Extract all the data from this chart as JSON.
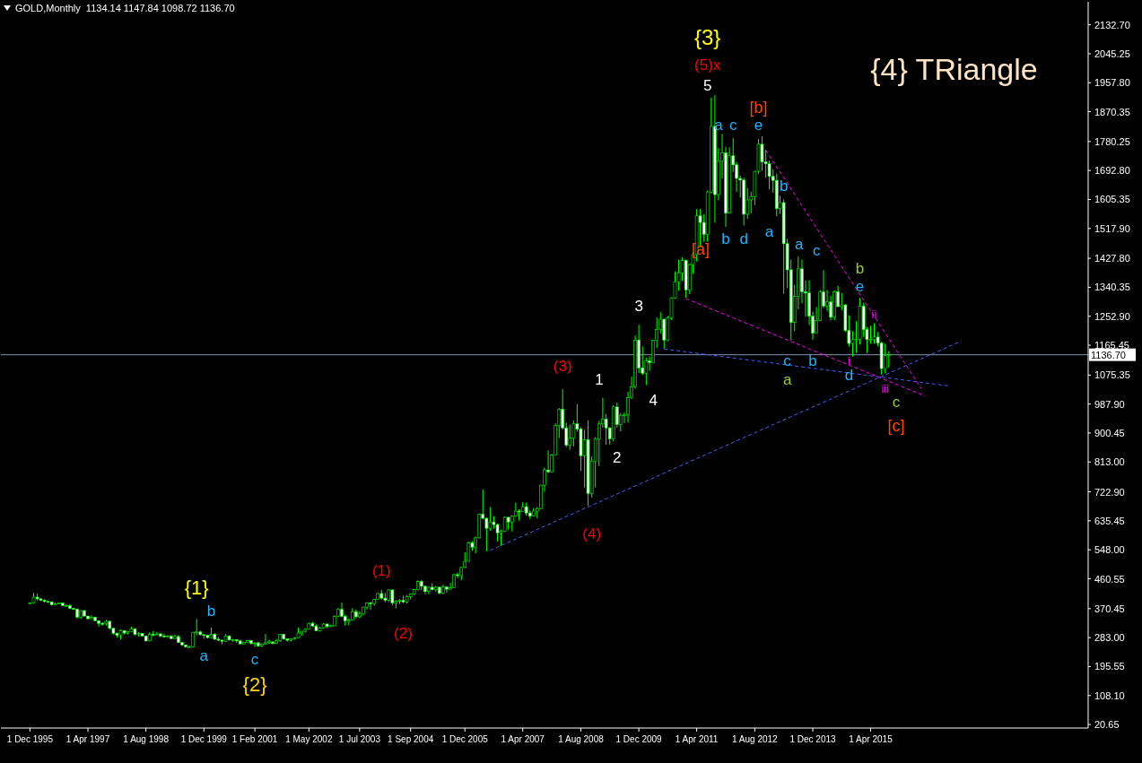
{
  "chart_data": {
    "type": "candlestick",
    "title": "GOLD,Monthly  1134.14 1147.84 1098.72 1136.70",
    "color": "#00ff00",
    "x": [
      "1995-12",
      "1996-01",
      "1996-02",
      "1996-03",
      "1996-04",
      "1996-05",
      "1996-06",
      "1996-07",
      "1996-08",
      "1996-09",
      "1996-10",
      "1996-11",
      "1996-12",
      "1997-01",
      "1997-02",
      "1997-03",
      "1997-04",
      "1997-05",
      "1997-06",
      "1997-07",
      "1997-08",
      "1997-09",
      "1997-10",
      "1997-11",
      "1997-12",
      "1998-01",
      "1998-02",
      "1998-03",
      "1998-04",
      "1998-05",
      "1998-06",
      "1998-07",
      "1998-08",
      "1998-09",
      "1998-10",
      "1998-11",
      "1998-12",
      "1999-01",
      "1999-02",
      "1999-03",
      "1999-04",
      "1999-05",
      "1999-06",
      "1999-07",
      "1999-08",
      "1999-09",
      "1999-10",
      "1999-11",
      "1999-12",
      "2000-01",
      "2000-02",
      "2000-03",
      "2000-04",
      "2000-05",
      "2000-06",
      "2000-07",
      "2000-08",
      "2000-09",
      "2000-10",
      "2000-11",
      "2000-12",
      "2001-01",
      "2001-02",
      "2001-03",
      "2001-04",
      "2001-05",
      "2001-06",
      "2001-07",
      "2001-08",
      "2001-09",
      "2001-10",
      "2001-11",
      "2001-12",
      "2002-01",
      "2002-02",
      "2002-03",
      "2002-04",
      "2002-05",
      "2002-06",
      "2002-07",
      "2002-08",
      "2002-09",
      "2002-10",
      "2002-11",
      "2002-12",
      "2003-01",
      "2003-02",
      "2003-03",
      "2003-04",
      "2003-05",
      "2003-06",
      "2003-07",
      "2003-08",
      "2003-09",
      "2003-10",
      "2003-11",
      "2003-12",
      "2004-01",
      "2004-02",
      "2004-03",
      "2004-04",
      "2004-05",
      "2004-06",
      "2004-07",
      "2004-08",
      "2004-09",
      "2004-10",
      "2004-11",
      "2004-12",
      "2005-01",
      "2005-02",
      "2005-03",
      "2005-04",
      "2005-05",
      "2005-06",
      "2005-07",
      "2005-08",
      "2005-09",
      "2005-10",
      "2005-11",
      "2005-12",
      "2006-01",
      "2006-02",
      "2006-03",
      "2006-04",
      "2006-05",
      "2006-06",
      "2006-07",
      "2006-08",
      "2006-09",
      "2006-10",
      "2006-11",
      "2006-12",
      "2007-01",
      "2007-02",
      "2007-03",
      "2007-04",
      "2007-05",
      "2007-06",
      "2007-07",
      "2007-08",
      "2007-09",
      "2007-10",
      "2007-11",
      "2007-12",
      "2008-01",
      "2008-02",
      "2008-03",
      "2008-04",
      "2008-05",
      "2008-06",
      "2008-07",
      "2008-08",
      "2008-09",
      "2008-10",
      "2008-11",
      "2008-12",
      "2009-01",
      "2009-02",
      "2009-03",
      "2009-04",
      "2009-05",
      "2009-06",
      "2009-07",
      "2009-08",
      "2009-09",
      "2009-10",
      "2009-11",
      "2009-12",
      "2010-01",
      "2010-02",
      "2010-03",
      "2010-04",
      "2010-05",
      "2010-06",
      "2010-07",
      "2010-08",
      "2010-09",
      "2010-10",
      "2010-11",
      "2010-12",
      "2011-01",
      "2011-02",
      "2011-03",
      "2011-04",
      "2011-05",
      "2011-06",
      "2011-07",
      "2011-08",
      "2011-09",
      "2011-10",
      "2011-11",
      "2011-12",
      "2012-01",
      "2012-02",
      "2012-03",
      "2012-04",
      "2012-05",
      "2012-06",
      "2012-07",
      "2012-08",
      "2012-09",
      "2012-10",
      "2012-11",
      "2012-12",
      "2013-01",
      "2013-02",
      "2013-03",
      "2013-04",
      "2013-05",
      "2013-06",
      "2013-07",
      "2013-08",
      "2013-09",
      "2013-10",
      "2013-11",
      "2013-12",
      "2014-01",
      "2014-02",
      "2014-03",
      "2014-04",
      "2014-05",
      "2014-06",
      "2014-07",
      "2014-08",
      "2014-09",
      "2014-10",
      "2014-11",
      "2014-12",
      "2015-01",
      "2015-02",
      "2015-03",
      "2015-04",
      "2015-05",
      "2015-06",
      "2015-07",
      "2015-08",
      "2015-09"
    ],
    "ohlc": [
      [
        386,
        389,
        384,
        387
      ],
      [
        387,
        418,
        386,
        405
      ],
      [
        405,
        416,
        395,
        400
      ],
      [
        400,
        401,
        393,
        396
      ],
      [
        396,
        398,
        389,
        392
      ],
      [
        392,
        394,
        388,
        391
      ],
      [
        391,
        392,
        380,
        382
      ],
      [
        382,
        389,
        381,
        385
      ],
      [
        385,
        389,
        384,
        387
      ],
      [
        387,
        388,
        378,
        379
      ],
      [
        379,
        385,
        378,
        379
      ],
      [
        379,
        384,
        370,
        371
      ],
      [
        371,
        372,
        366,
        369
      ],
      [
        369,
        370,
        340,
        345
      ],
      [
        345,
        366,
        339,
        364
      ],
      [
        364,
        367,
        347,
        348
      ],
      [
        348,
        349,
        337,
        340
      ],
      [
        340,
        350,
        339,
        344
      ],
      [
        344,
        346,
        334,
        334
      ],
      [
        334,
        335,
        316,
        326
      ],
      [
        326,
        330,
        319,
        325
      ],
      [
        325,
        336,
        319,
        332
      ],
      [
        332,
        335,
        307,
        311
      ],
      [
        311,
        312,
        292,
        296
      ],
      [
        296,
        298,
        283,
        290
      ],
      [
        290,
        308,
        277,
        304
      ],
      [
        304,
        305,
        292,
        297
      ],
      [
        297,
        303,
        292,
        301
      ],
      [
        301,
        316,
        300,
        309
      ],
      [
        309,
        311,
        290,
        293
      ],
      [
        293,
        299,
        286,
        296
      ],
      [
        296,
        297,
        287,
        288
      ],
      [
        288,
        289,
        271,
        273
      ],
      [
        273,
        299,
        272,
        293
      ],
      [
        293,
        303,
        287,
        292
      ],
      [
        292,
        300,
        290,
        294
      ],
      [
        294,
        297,
        284,
        288
      ],
      [
        288,
        294,
        283,
        287
      ],
      [
        287,
        290,
        282,
        287
      ],
      [
        287,
        291,
        278,
        280
      ],
      [
        280,
        292,
        279,
        286
      ],
      [
        286,
        291,
        267,
        268
      ],
      [
        268,
        269,
        257,
        261
      ],
      [
        261,
        262,
        252,
        255
      ],
      [
        255,
        259,
        252,
        255
      ],
      [
        255,
        300,
        254,
        299
      ],
      [
        299,
        339,
        290,
        300
      ],
      [
        300,
        304,
        289,
        292
      ],
      [
        292,
        292,
        279,
        290
      ],
      [
        290,
        292,
        280,
        283
      ],
      [
        283,
        313,
        281,
        293
      ],
      [
        293,
        297,
        276,
        278
      ],
      [
        278,
        285,
        273,
        275
      ],
      [
        275,
        277,
        263,
        272
      ],
      [
        272,
        294,
        270,
        288
      ],
      [
        288,
        290,
        274,
        276
      ],
      [
        276,
        279,
        270,
        277
      ],
      [
        277,
        278,
        267,
        273
      ],
      [
        273,
        276,
        263,
        264
      ],
      [
        264,
        271,
        263,
        269
      ],
      [
        269,
        275,
        267,
        274
      ],
      [
        274,
        275,
        262,
        265
      ],
      [
        265,
        269,
        255,
        267
      ],
      [
        267,
        271,
        255,
        258
      ],
      [
        258,
        266,
        254,
        263
      ],
      [
        263,
        294,
        262,
        267
      ],
      [
        267,
        277,
        264,
        270
      ],
      [
        270,
        272,
        263,
        265
      ],
      [
        265,
        279,
        264,
        273
      ],
      [
        273,
        294,
        270,
        293
      ],
      [
        293,
        294,
        276,
        279
      ],
      [
        279,
        280,
        271,
        275
      ],
      [
        275,
        281,
        271,
        279
      ],
      [
        279,
        284,
        277,
        282
      ],
      [
        282,
        313,
        281,
        297
      ],
      [
        297,
        303,
        289,
        302
      ],
      [
        302,
        311,
        299,
        308
      ],
      [
        308,
        328,
        308,
        326
      ],
      [
        326,
        331,
        315,
        318
      ],
      [
        318,
        323,
        302,
        304
      ],
      [
        304,
        315,
        301,
        312
      ],
      [
        312,
        327,
        311,
        324
      ],
      [
        324,
        325,
        312,
        317
      ],
      [
        317,
        322,
        315,
        319
      ],
      [
        319,
        350,
        318,
        347
      ],
      [
        347,
        372,
        344,
        368
      ],
      [
        368,
        389,
        344,
        347
      ],
      [
        347,
        352,
        319,
        334
      ],
      [
        334,
        340,
        320,
        336
      ],
      [
        336,
        372,
        335,
        361
      ],
      [
        361,
        368,
        341,
        346
      ],
      [
        346,
        362,
        341,
        354
      ],
      [
        354,
        376,
        351,
        375
      ],
      [
        375,
        390,
        368,
        388
      ],
      [
        388,
        391,
        367,
        386
      ],
      [
        386,
        399,
        379,
        398
      ],
      [
        398,
        418,
        397,
        416
      ],
      [
        416,
        427,
        398,
        402
      ],
      [
        402,
        418,
        390,
        396
      ],
      [
        396,
        428,
        390,
        427
      ],
      [
        427,
        428,
        381,
        388
      ],
      [
        388,
        396,
        371,
        393
      ],
      [
        393,
        399,
        384,
        395
      ],
      [
        395,
        410,
        387,
        391
      ],
      [
        391,
        412,
        386,
        407
      ],
      [
        407,
        416,
        398,
        415
      ],
      [
        415,
        430,
        411,
        428
      ],
      [
        428,
        456,
        425,
        452
      ],
      [
        452,
        457,
        427,
        438
      ],
      [
        438,
        439,
        414,
        422
      ],
      [
        422,
        438,
        414,
        435
      ],
      [
        435,
        447,
        425,
        428
      ],
      [
        428,
        439,
        421,
        435
      ],
      [
        435,
        436,
        414,
        417
      ],
      [
        417,
        443,
        414,
        436
      ],
      [
        436,
        438,
        418,
        429
      ],
      [
        429,
        448,
        428,
        433
      ],
      [
        433,
        475,
        432,
        473
      ],
      [
        473,
        479,
        462,
        470
      ],
      [
        470,
        496,
        456,
        495
      ],
      [
        495,
        540,
        493,
        513
      ],
      [
        513,
        572,
        513,
        569
      ],
      [
        569,
        574,
        545,
        556
      ],
      [
        556,
        588,
        537,
        584
      ],
      [
        584,
        657,
        582,
        655
      ],
      [
        655,
        730,
        640,
        643
      ],
      [
        643,
        646,
        543,
        613
      ],
      [
        613,
        677,
        605,
        632
      ],
      [
        632,
        650,
        612,
        624
      ],
      [
        624,
        627,
        573,
        599
      ],
      [
        599,
        608,
        560,
        604
      ],
      [
        604,
        649,
        603,
        646
      ],
      [
        646,
        647,
        609,
        632
      ],
      [
        632,
        652,
        603,
        650
      ],
      [
        650,
        690,
        647,
        665
      ],
      [
        665,
        670,
        636,
        663
      ],
      [
        663,
        692,
        662,
        678
      ],
      [
        678,
        690,
        651,
        659
      ],
      [
        659,
        666,
        641,
        650
      ],
      [
        650,
        674,
        648,
        665
      ],
      [
        665,
        677,
        643,
        672
      ],
      [
        672,
        745,
        671,
        743
      ],
      [
        743,
        796,
        723,
        789
      ],
      [
        789,
        848,
        780,
        783
      ],
      [
        783,
        838,
        782,
        834
      ],
      [
        834,
        930,
        834,
        923
      ],
      [
        923,
        976,
        885,
        972
      ],
      [
        972,
        1033,
        911,
        916
      ],
      [
        916,
        932,
        858,
        864
      ],
      [
        864,
        926,
        850,
        885
      ],
      [
        885,
        938,
        860,
        928
      ],
      [
        928,
        988,
        905,
        912
      ],
      [
        912,
        918,
        786,
        832
      ],
      [
        832,
        910,
        736,
        880
      ],
      [
        880,
        939,
        681,
        718
      ],
      [
        718,
        830,
        705,
        816
      ],
      [
        816,
        888,
        736,
        882
      ],
      [
        882,
        937,
        801,
        928
      ],
      [
        928,
        1007,
        917,
        942
      ],
      [
        942,
        958,
        865,
        916
      ],
      [
        916,
        918,
        865,
        883
      ],
      [
        883,
        984,
        875,
        979
      ],
      [
        979,
        992,
        917,
        926
      ],
      [
        926,
        961,
        905,
        954
      ],
      [
        954,
        963,
        930,
        955
      ],
      [
        955,
        1025,
        932,
        1007
      ],
      [
        1007,
        1070,
        1003,
        1040
      ],
      [
        1040,
        1195,
        1034,
        1181
      ],
      [
        1181,
        1227,
        1081,
        1097
      ],
      [
        1097,
        1162,
        1075,
        1081
      ],
      [
        1081,
        1128,
        1045,
        1118
      ],
      [
        1118,
        1132,
        1088,
        1113
      ],
      [
        1113,
        1181,
        1112,
        1180
      ],
      [
        1180,
        1249,
        1157,
        1213
      ],
      [
        1213,
        1265,
        1201,
        1244
      ],
      [
        1244,
        1245,
        1155,
        1181
      ],
      [
        1181,
        1254,
        1178,
        1248
      ],
      [
        1248,
        1310,
        1242,
        1308
      ],
      [
        1308,
        1388,
        1307,
        1357
      ],
      [
        1357,
        1424,
        1330,
        1384
      ],
      [
        1384,
        1431,
        1360,
        1421
      ],
      [
        1421,
        1424,
        1308,
        1332
      ],
      [
        1332,
        1411,
        1320,
        1409
      ],
      [
        1409,
        1447,
        1381,
        1439
      ],
      [
        1439,
        1576,
        1418,
        1556
      ],
      [
        1556,
        1577,
        1462,
        1536
      ],
      [
        1536,
        1561,
        1478,
        1500
      ],
      [
        1500,
        1632,
        1478,
        1628
      ],
      [
        1628,
        1913,
        1624,
        1826
      ],
      [
        1826,
        1921,
        1535,
        1620
      ],
      [
        1620,
        1760,
        1603,
        1722
      ],
      [
        1722,
        1803,
        1669,
        1746
      ],
      [
        1746,
        1764,
        1523,
        1564
      ],
      [
        1564,
        1763,
        1563,
        1737
      ],
      [
        1737,
        1791,
        1689,
        1710
      ],
      [
        1710,
        1719,
        1628,
        1669
      ],
      [
        1669,
        1677,
        1611,
        1664
      ],
      [
        1664,
        1671,
        1527,
        1561
      ],
      [
        1561,
        1640,
        1547,
        1604
      ],
      [
        1604,
        1629,
        1564,
        1614
      ],
      [
        1614,
        1692,
        1588,
        1690
      ],
      [
        1690,
        1788,
        1682,
        1772
      ],
      [
        1772,
        1796,
        1692,
        1719
      ],
      [
        1719,
        1755,
        1671,
        1713
      ],
      [
        1713,
        1723,
        1636,
        1675
      ],
      [
        1675,
        1697,
        1626,
        1663
      ],
      [
        1663,
        1684,
        1555,
        1578
      ],
      [
        1578,
        1617,
        1562,
        1596
      ],
      [
        1596,
        1606,
        1321,
        1472
      ],
      [
        1472,
        1487,
        1338,
        1393
      ],
      [
        1393,
        1424,
        1180,
        1234
      ],
      [
        1234,
        1348,
        1208,
        1313
      ],
      [
        1313,
        1434,
        1274,
        1396
      ],
      [
        1396,
        1424,
        1292,
        1327
      ],
      [
        1327,
        1361,
        1251,
        1323
      ],
      [
        1323,
        1362,
        1226,
        1253
      ],
      [
        1253,
        1267,
        1182,
        1202
      ],
      [
        1202,
        1280,
        1202,
        1240
      ],
      [
        1240,
        1332,
        1238,
        1326
      ],
      [
        1326,
        1392,
        1277,
        1284
      ],
      [
        1284,
        1332,
        1268,
        1296
      ],
      [
        1296,
        1315,
        1240,
        1250
      ],
      [
        1250,
        1331,
        1241,
        1327
      ],
      [
        1327,
        1345,
        1281,
        1282
      ],
      [
        1282,
        1323,
        1271,
        1287
      ],
      [
        1287,
        1290,
        1206,
        1210
      ],
      [
        1210,
        1256,
        1161,
        1171
      ],
      [
        1171,
        1208,
        1131,
        1182
      ],
      [
        1182,
        1238,
        1142,
        1184
      ],
      [
        1184,
        1308,
        1167,
        1283
      ],
      [
        1283,
        1294,
        1191,
        1213
      ],
      [
        1213,
        1220,
        1142,
        1183
      ],
      [
        1183,
        1224,
        1170,
        1183
      ],
      [
        1183,
        1232,
        1170,
        1190
      ],
      [
        1190,
        1205,
        1162,
        1172
      ],
      [
        1172,
        1175,
        1077,
        1095
      ],
      [
        1095,
        1170,
        1080,
        1134
      ],
      [
        1134.14,
        1147.84,
        1098.72,
        1136.7
      ]
    ],
    "series": [
      {
        "type": "line",
        "x": [
          "2006-07",
          "2017-05"
        ],
        "values": [
          546,
          1178
        ],
        "color": "#4a5cff",
        "line_style": "dashed"
      },
      {
        "type": "line",
        "x": [
          "2010-07",
          "2017-02"
        ],
        "values": [
          1154,
          1042
        ],
        "color": "#4a5cff",
        "line_style": "dashed"
      },
      {
        "type": "line",
        "x": [
          "2011-01",
          "2016-07"
        ],
        "values": [
          1306,
          1012
        ],
        "color": "#ff00ff",
        "line_style": "dashed"
      },
      {
        "type": "line",
        "x": [
          "2012-11",
          "2016-06"
        ],
        "values": [
          1754,
          1034
        ],
        "color": "#ff00ff",
        "line_style": "dashed"
      }
    ],
    "xlim": [
      "1995-04",
      "2020-04"
    ],
    "xticks": [
      {
        "value": "1995-12",
        "label": "1 Dec 1995"
      },
      {
        "value": "1997-04",
        "label": "1 Apr 1997"
      },
      {
        "value": "1998-08",
        "label": "1 Aug 1998"
      },
      {
        "value": "1999-12",
        "label": "1 Dec 1999"
      },
      {
        "value": "2001-02",
        "label": "1 Feb 2001"
      },
      {
        "value": "2002-05",
        "label": "1 May 2002"
      },
      {
        "value": "2003-07",
        "label": "1 Jul 2003"
      },
      {
        "value": "2004-09",
        "label": "1 Sep 2004"
      },
      {
        "value": "2005-12",
        "label": "1 Dec 2005"
      },
      {
        "value": "2007-04",
        "label": "1 Apr 2007"
      },
      {
        "value": "2008-08",
        "label": "1 Aug 2008"
      },
      {
        "value": "2009-12",
        "label": "1 Dec 2009"
      },
      {
        "value": "2011-04",
        "label": "1 Apr 2011"
      },
      {
        "value": "2012-08",
        "label": "1 Aug 2012"
      },
      {
        "value": "2013-12",
        "label": "1 Dec 2013"
      },
      {
        "value": "2015-04",
        "label": "1 Apr 2015"
      }
    ],
    "ylim": [
      10,
      2202
    ],
    "yticks": [
      20.65,
      {
        "value": 108.1,
        "label": "108.10"
      },
      195.55,
      {
        "value": 283,
        "label": "283.00"
      },
      370.45,
      460.55,
      {
        "value": 548,
        "label": "548.00"
      },
      635.45,
      {
        "value": 722.9,
        "label": "722.90"
      },
      {
        "value": 813,
        "label": "813.00"
      },
      900.45,
      {
        "value": 987.9,
        "label": "987.90"
      },
      1075.35,
      1165.45,
      {
        "value": 1252.9,
        "label": "1252.90"
      },
      1340.35,
      {
        "value": 1427.8,
        "label": "1427.80"
      },
      {
        "value": 1517.9,
        "label": "1517.90"
      },
      1605.35,
      {
        "value": 1692.8,
        "label": "1692.80"
      },
      1780.25,
      1870.35,
      {
        "value": 1957.8,
        "label": "1957.80"
      },
      2045.25,
      {
        "value": 2132.7,
        "label": "2132.70"
      }
    ],
    "ref_lines": [
      {
        "axis": "y",
        "value": 1136.7,
        "label": "1136.70",
        "color": "#7f93ad"
      }
    ],
    "annotations": [
      "{3}",
      "(5)x",
      "5",
      {
        "text": "a",
        "x": "2011-10",
        "y": 1760
      },
      "c",
      "[b]",
      "e",
      {
        "text": "[a]",
        "x": "2011-09",
        "y": 1535
      },
      "b",
      "d",
      {
        "text": "b",
        "x": "2013-02",
        "y": 1684
      },
      {
        "text": "a",
        "x": "2013-03",
        "y": 1562
      },
      {
        "text": "a",
        "x": "2013-06",
        "y": 1424
      },
      "c",
      "b",
      "e",
      {
        "text": "ii",
        "x": "2015-05",
        "y": 1232
      },
      {
        "text": "i",
        "x": "2014-12",
        "y": 1142
      },
      "c",
      "b",
      "a",
      "d",
      "iii",
      "c",
      "[c]",
      "(3)",
      {
        "text": "1",
        "x": "2009-02",
        "y": 1007
      },
      "3",
      {
        "text": "4",
        "x": "2010-02",
        "y": 1045
      },
      "2",
      "(4)",
      "(1)",
      "(2)",
      "{1}",
      "b",
      "a",
      "c",
      "{2}",
      "{4} TRiangle"
    ]
  }
}
